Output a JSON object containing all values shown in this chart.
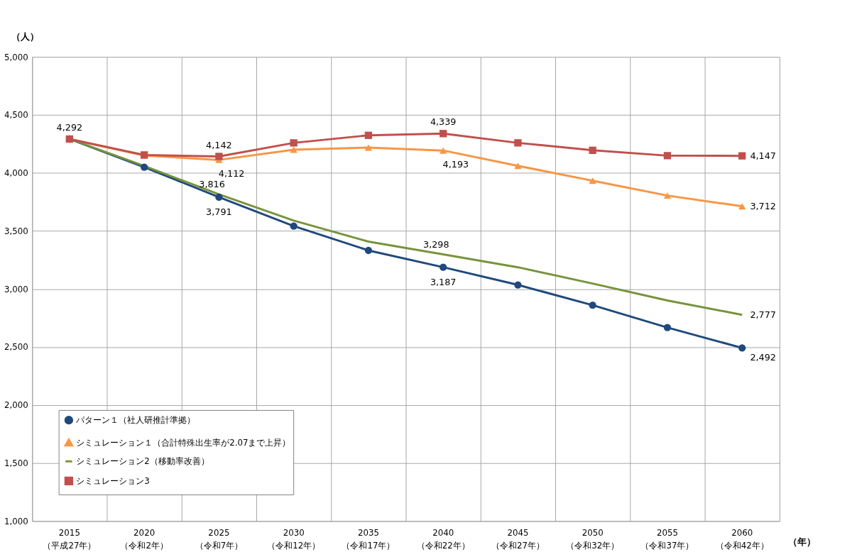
{
  "chart_data": {
    "type": "line",
    "ylabel": "（人）",
    "xlabel": "（年）",
    "categories": [
      "2015\n（平成27年）",
      "2020\n（令和2年）",
      "2025\n（令和7年）",
      "2030\n（令和12年）",
      "2035\n（令和17年）",
      "2040\n（令和22年）",
      "2045\n（令和27年）",
      "2050\n（令和32年）",
      "2055\n（令和37年）",
      "2060\n（令和42年）"
    ],
    "series": [
      {
        "name": "パターン１（社人研推計準拠）",
        "color": "#1f497d",
        "marker": "circle",
        "values": [
          4292,
          4050,
          3791,
          3542,
          3332,
          3187,
          3035,
          2860,
          2668,
          2492
        ],
        "value_labels": [
          null,
          null,
          "3,791",
          null,
          null,
          "3,187",
          null,
          null,
          null,
          "2,492"
        ]
      },
      {
        "name": "シミュレーション１（合計特殊出生率が2.07まで上昇）",
        "color": "#f79646",
        "marker": "triangle",
        "values": [
          4292,
          4150,
          4112,
          4200,
          4219,
          4193,
          4061,
          3933,
          3805,
          3712
        ],
        "value_labels": [
          null,
          null,
          "4,112",
          null,
          null,
          "4,193",
          null,
          null,
          null,
          "3,712"
        ]
      },
      {
        "name": "シミュレーション2（移動率改善）",
        "color": "#77933c",
        "marker": "none",
        "values": [
          4292,
          4060,
          3816,
          3589,
          3408,
          3298,
          3187,
          3047,
          2901,
          2777
        ],
        "value_labels": [
          null,
          null,
          "3,816",
          null,
          null,
          "3,298",
          null,
          null,
          null,
          "2,777"
        ]
      },
      {
        "name": "シミュレーション3",
        "color": "#c0504d",
        "marker": "square",
        "values": [
          4292,
          4155,
          4142,
          4259,
          4324,
          4339,
          4259,
          4195,
          4149,
          4147
        ],
        "value_labels": [
          "4,292",
          null,
          "4,142",
          null,
          null,
          "4,339",
          null,
          null,
          null,
          "4,147"
        ]
      }
    ],
    "ylim": [
      1000,
      5000
    ],
    "yticks": [
      {
        "value": 1000,
        "label": "1,000"
      },
      {
        "value": 1500,
        "label": "1,500"
      },
      {
        "value": 2000,
        "label": "2,000"
      },
      {
        "value": 2500,
        "label": "2,500"
      },
      {
        "value": 3000,
        "label": "3,000"
      },
      {
        "value": 3500,
        "label": "3,500"
      },
      {
        "value": 4000,
        "label": "4,000"
      },
      {
        "value": 4500,
        "label": "4,500"
      },
      {
        "value": 5000,
        "label": "5,000"
      }
    ],
    "grid": true,
    "legend": "bottom left",
    "line_style": "solid"
  }
}
